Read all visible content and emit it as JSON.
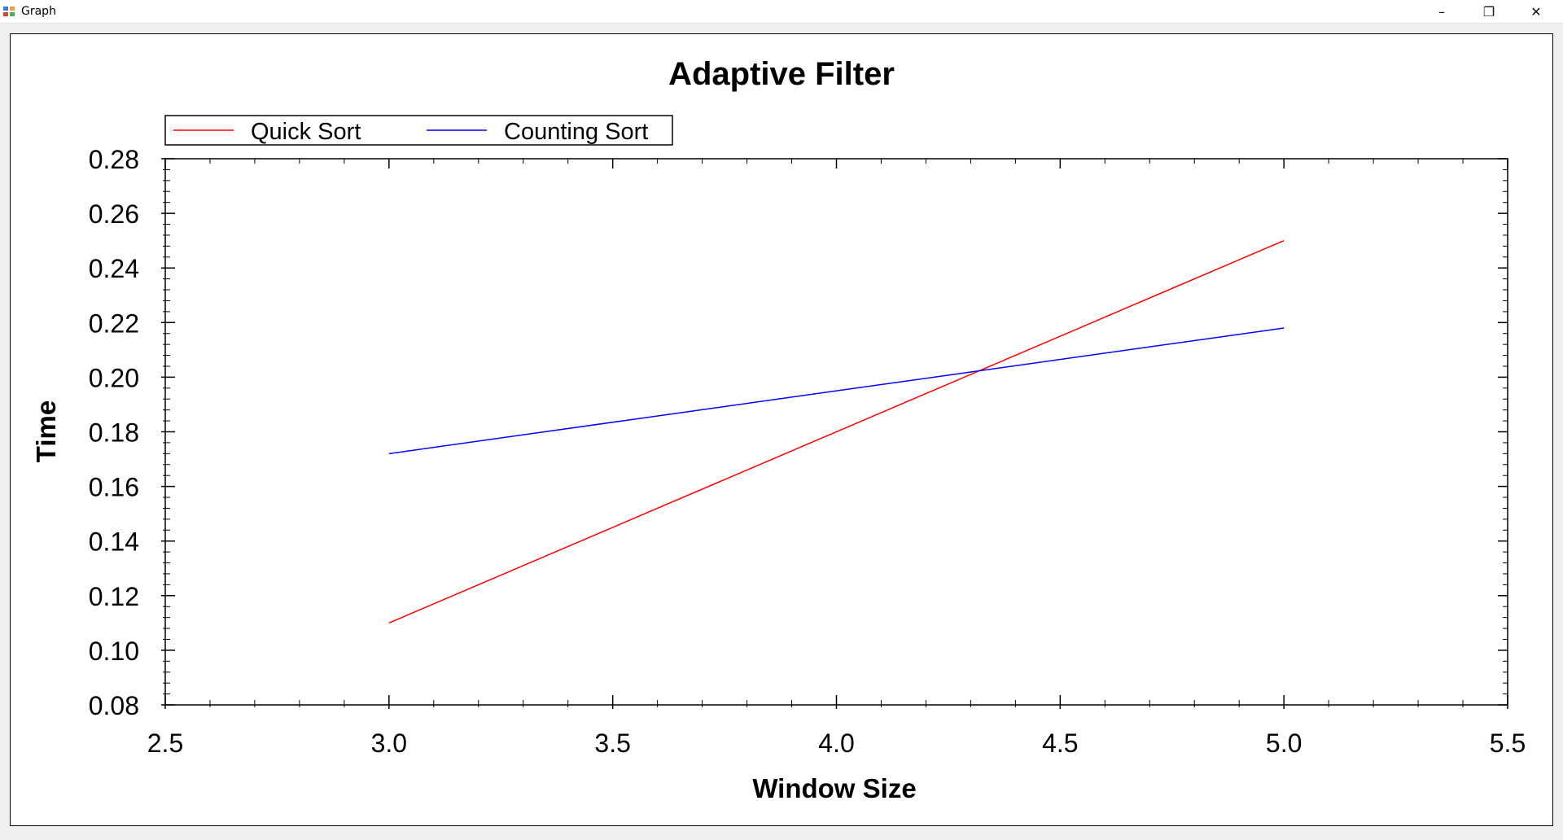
{
  "window": {
    "title": "Graph",
    "minimize_glyph": "–",
    "restore_glyph": "❐",
    "close_glyph": "✕",
    "icon": "app-icon"
  },
  "colors": {
    "quick_sort": "#ff0000",
    "counting_sort": "#0000ff",
    "axis": "#000000",
    "plot_background": "#ffffff"
  },
  "chart_data": {
    "type": "line",
    "title": "Adaptive Filter",
    "xlabel": "Window Size",
    "ylabel": "Time",
    "xlim": [
      2.5,
      5.5
    ],
    "ylim": [
      0.08,
      0.28
    ],
    "x_ticks": [
      "2.5",
      "3.0",
      "3.5",
      "4.0",
      "4.5",
      "5.0",
      "5.5"
    ],
    "y_ticks": [
      "0.08",
      "0.10",
      "0.12",
      "0.14",
      "0.16",
      "0.18",
      "0.20",
      "0.22",
      "0.24",
      "0.26",
      "0.28"
    ],
    "grid": false,
    "legend_position": "top-left",
    "series": [
      {
        "name": "Quick Sort",
        "color": "#ff0000",
        "x": [
          3,
          5
        ],
        "y": [
          0.11,
          0.25
        ]
      },
      {
        "name": "Counting Sort",
        "color": "#0000ff",
        "x": [
          3,
          5
        ],
        "y": [
          0.172,
          0.218
        ]
      }
    ]
  }
}
